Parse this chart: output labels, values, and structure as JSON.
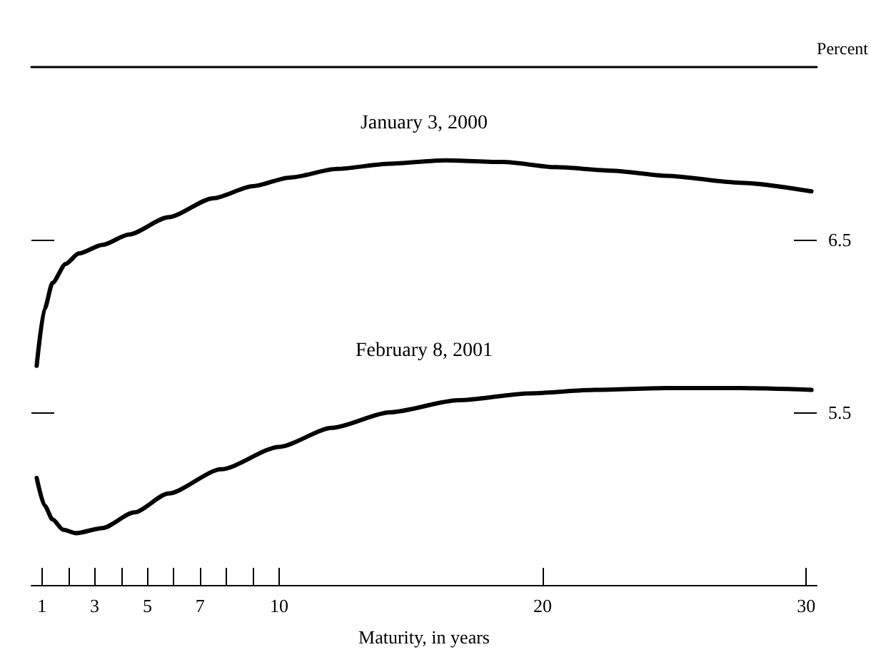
{
  "chart_data": {
    "type": "line",
    "xlabel": "Maturity, in years",
    "ylabel": "Percent",
    "xlim": [
      0.6,
      30.4
    ],
    "ylim": [
      4.5,
      7.5
    ],
    "xticks": [
      1,
      {
        "value": 2,
        "label": null
      },
      3,
      {
        "value": 4,
        "label": null
      },
      5,
      {
        "value": 6,
        "label": null
      },
      7,
      {
        "value": 8,
        "label": null
      },
      {
        "value": 9,
        "label": null
      },
      10,
      20,
      30
    ],
    "yticks": [
      5.5,
      6.5
    ],
    "grid": false,
    "legend": false,
    "marker": "none",
    "line_style": "solid",
    "series": [
      {
        "name": "January 3, 2000",
        "color": "#000000",
        "x": [
          0.8,
          1.1,
          1.4,
          1.9,
          2.4,
          3.3,
          4.3,
          5.8,
          7.5,
          9,
          10.4,
          12.2,
          14.2,
          16.3,
          18.5,
          20.5,
          22.6,
          24.7,
          27.5,
          30.2
        ],
        "values": [
          5.77,
          6.1,
          6.25,
          6.36,
          6.42,
          6.47,
          6.53,
          6.63,
          6.74,
          6.81,
          6.86,
          6.91,
          6.94,
          6.96,
          6.95,
          6.92,
          6.9,
          6.87,
          6.83,
          6.78
        ]
      },
      {
        "name": "February 8, 2001",
        "color": "#000000",
        "x": [
          0.8,
          1.1,
          1.4,
          1.8,
          2.3,
          3.3,
          4.5,
          5.8,
          7.8,
          10,
          12,
          14.2,
          16.8,
          19.5,
          22,
          24.7,
          27.5,
          30.2
        ],
        "values": [
          5.12,
          4.96,
          4.88,
          4.82,
          4.8,
          4.83,
          4.92,
          5.03,
          5.17,
          5.3,
          5.41,
          5.5,
          5.57,
          5.61,
          5.63,
          5.64,
          5.64,
          5.63
        ]
      }
    ]
  }
}
